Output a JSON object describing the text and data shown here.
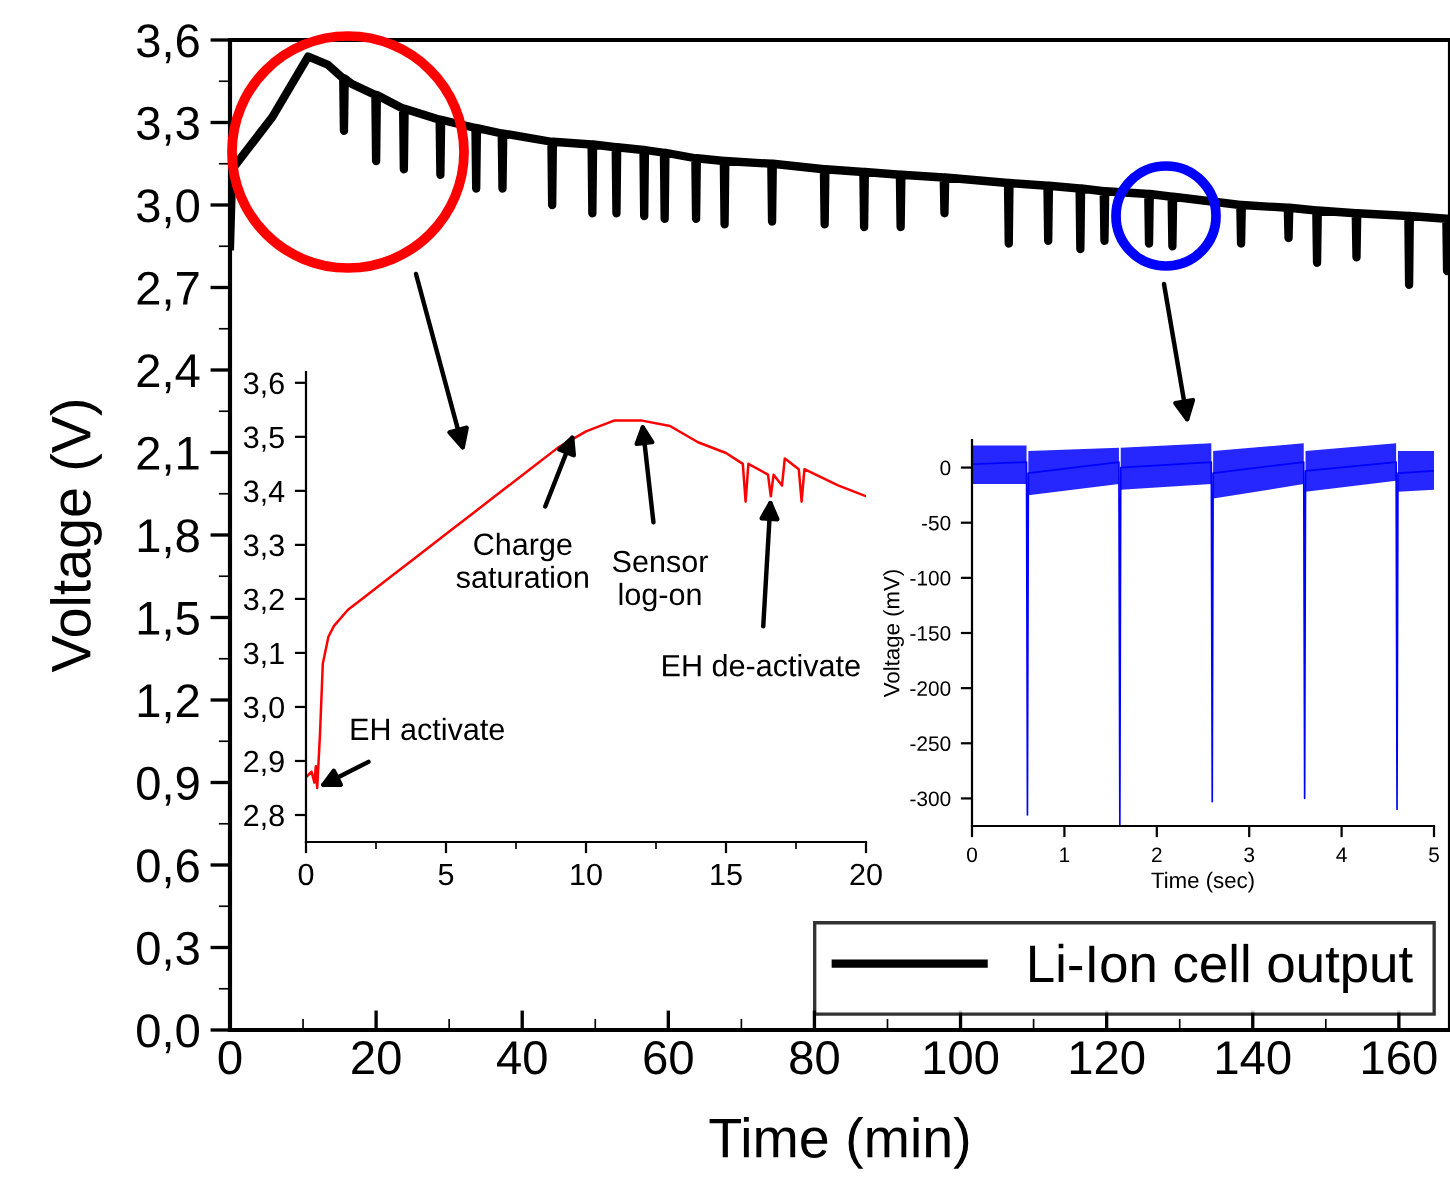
{
  "chart_data": [
    {
      "type": "line",
      "xlabel": "Time (min)",
      "ylabel": "Voltage (V)",
      "legend": "bottom right",
      "xlim": [
        0,
        167
      ],
      "ylim": [
        0,
        3.6
      ],
      "xticks": [
        0,
        {
          "value": 10,
          "label": null
        },
        20,
        {
          "value": 30,
          "label": null
        },
        40,
        {
          "value": 50,
          "label": null
        },
        60,
        {
          "value": 70,
          "label": null
        },
        80,
        {
          "value": 90,
          "label": null
        },
        100,
        {
          "value": 110,
          "label": null
        },
        120,
        {
          "value": 130,
          "label": null
        },
        140,
        {
          "value": 150,
          "label": null
        },
        160
      ],
      "yticks": [
        {
          "value": 0,
          "label": "0,0"
        },
        {
          "value": 0.15,
          "label": null
        },
        {
          "value": 0.3,
          "label": "0,3"
        },
        {
          "value": 0.45,
          "label": null
        },
        {
          "value": 0.6,
          "label": "0,6"
        },
        {
          "value": 0.75,
          "label": null
        },
        {
          "value": 0.9,
          "label": "0,9"
        },
        {
          "value": 1.05,
          "label": null
        },
        {
          "value": 1.2,
          "label": "1,2"
        },
        {
          "value": 1.35,
          "label": null
        },
        {
          "value": 1.5,
          "label": "1,5"
        },
        {
          "value": 1.65,
          "label": null
        },
        {
          "value": 1.8,
          "label": "1,8"
        },
        {
          "value": 1.95,
          "label": null
        },
        {
          "value": 2.1,
          "label": "2,1"
        },
        {
          "value": 2.25,
          "label": null
        },
        {
          "value": 2.4,
          "label": "2,4"
        },
        {
          "value": 2.55,
          "label": null
        },
        {
          "value": 2.7,
          "label": "2,7"
        },
        {
          "value": 2.85,
          "label": null
        },
        {
          "value": 3.0,
          "label": "3,0"
        },
        {
          "value": 3.15,
          "label": null
        },
        {
          "value": 3.3,
          "label": "3,3"
        },
        {
          "value": 3.45,
          "label": null
        },
        {
          "value": 3.6,
          "label": "3,6"
        }
      ],
      "series": [
        {
          "name": "Li-Ion cell output",
          "color": "#000000",
          "x": [
            0,
            0.3,
            5.8,
            10.7,
            13.4,
            15.5,
            15.6,
            15.7,
            16.7,
            19.9,
            20,
            20.1,
            23.7,
            23.8,
            23.9,
            28.7,
            28.8,
            28.9,
            33.6,
            33.7,
            33.8,
            37.2,
            37.3,
            37.4,
            44.0,
            44.1,
            44.2,
            49.5,
            49.6,
            49.7,
            52.8,
            52.9,
            53.0,
            56.6,
            56.7,
            56.8,
            59.4,
            59.5,
            59.6,
            63.7,
            63.8,
            63.9,
            67.6,
            67.7,
            67.8,
            74.1,
            74.2,
            74.3,
            81.3,
            81.4,
            81.5,
            86.7,
            86.8,
            86.9,
            91.7,
            91.8,
            91.9,
            97.7,
            97.8,
            97.9,
            106.5,
            106.6,
            106.7,
            111.9,
            112,
            112.1,
            116.3,
            116.4,
            116.5,
            119.6,
            119.7,
            119.8,
            125.7,
            125.8,
            125.9,
            128.9,
            129,
            129.1,
            138.3,
            138.4,
            138.5,
            144.8,
            144.9,
            145,
            148.7,
            148.8,
            148.9,
            154.1,
            154.2,
            154.3,
            161.3,
            161.4,
            161.5,
            166.5,
            166.6,
            166.7
          ],
          "values": [
            2.85,
            3.13,
            3.32,
            3.54,
            3.51,
            3.46,
            3.27,
            3.46,
            3.44,
            3.4,
            3.16,
            3.4,
            3.35,
            3.13,
            3.35,
            3.31,
            3.11,
            3.31,
            3.28,
            3.06,
            3.28,
            3.26,
            3.06,
            3.26,
            3.23,
            3.0,
            3.23,
            3.22,
            2.97,
            3.22,
            3.21,
            2.97,
            3.21,
            3.2,
            2.96,
            3.2,
            3.19,
            2.95,
            3.19,
            3.17,
            2.95,
            3.17,
            3.16,
            2.93,
            3.16,
            3.15,
            2.94,
            3.15,
            3.13,
            2.93,
            3.13,
            3.12,
            2.92,
            3.12,
            3.11,
            2.92,
            3.11,
            3.1,
            2.97,
            3.1,
            3.08,
            2.86,
            3.08,
            3.07,
            2.87,
            3.07,
            3.06,
            2.84,
            3.06,
            3.05,
            2.87,
            3.05,
            3.04,
            2.86,
            3.04,
            3.03,
            2.85,
            3.03,
            3.0,
            2.86,
            3.0,
            2.99,
            2.88,
            2.99,
            2.98,
            2.79,
            2.98,
            2.97,
            2.81,
            2.97,
            2.96,
            2.71,
            2.96,
            2.95,
            2.76,
            2.95
          ]
        }
      ]
    },
    {
      "type": "line",
      "xlim": [
        0,
        20
      ],
      "ylim": [
        2.75,
        3.62
      ],
      "xticks": [
        0,
        {
          "value": 2.5,
          "label": null
        },
        5,
        {
          "value": 7.5,
          "label": null
        },
        10,
        {
          "value": 12.5,
          "label": null
        },
        15,
        {
          "value": 17.5,
          "label": null
        },
        20
      ],
      "yticks": [
        {
          "value": 2.8,
          "label": "2,8"
        },
        {
          "value": 2.9,
          "label": "2,9"
        },
        {
          "value": 3.0,
          "label": "3,0"
        },
        {
          "value": 3.1,
          "label": "3,1"
        },
        {
          "value": 3.2,
          "label": "3,2"
        },
        {
          "value": 3.3,
          "label": "3,3"
        },
        {
          "value": 3.4,
          "label": "3,4"
        },
        {
          "value": 3.5,
          "label": "3,5"
        },
        {
          "value": 3.6,
          "label": "3,6"
        }
      ],
      "annotations": [
        {
          "text": "EH activate",
          "x": 0.4,
          "y": 2.85
        },
        {
          "text": "Charge\nsaturation",
          "x": 9.6,
          "y": 3.51
        },
        {
          "text": "Sensor\nlog-on",
          "x": 12,
          "y": 3.53
        },
        {
          "text": "EH de-activate",
          "x": 16.6,
          "y": 3.39
        }
      ],
      "series": [
        {
          "color": "#ff0000",
          "x": [
            0,
            0.2,
            0.3,
            0.35,
            0.4,
            0.5,
            0.6,
            0.8,
            1,
            1.5,
            2,
            3,
            4,
            5,
            6,
            7,
            8,
            9,
            10,
            11,
            12,
            13,
            14,
            15,
            15.6,
            15.7,
            15.8,
            16.5,
            16.6,
            16.7,
            17,
            17.1,
            17.6,
            17.7,
            17.8,
            19,
            20
          ],
          "values": [
            2.87,
            2.88,
            2.86,
            2.89,
            2.85,
            2.95,
            3.08,
            3.13,
            3.15,
            3.18,
            3.2,
            3.24,
            3.28,
            3.32,
            3.36,
            3.4,
            3.44,
            3.48,
            3.51,
            3.53,
            3.53,
            3.52,
            3.49,
            3.47,
            3.45,
            3.38,
            3.45,
            3.43,
            3.39,
            3.43,
            3.41,
            3.46,
            3.44,
            3.38,
            3.44,
            3.41,
            3.39
          ]
        }
      ]
    },
    {
      "type": "line",
      "xlabel": "Time (sec)",
      "ylabel": "Voltage (mV)",
      "xlim": [
        0,
        5
      ],
      "ylim": [
        -325,
        25
      ],
      "xticks": [
        0,
        1,
        2,
        3,
        4,
        5
      ],
      "yticks": [
        -300,
        -250,
        -200,
        -150,
        -100,
        -50,
        0
      ],
      "series": [
        {
          "color": "#0000ff",
          "x": [
            0,
            0.59,
            0.6,
            0.61,
            1.59,
            1.6,
            1.61,
            2.59,
            2.6,
            2.61,
            3.59,
            3.6,
            3.61,
            4.59,
            4.6,
            4.61,
            5
          ],
          "values": [
            3,
            5,
            -315,
            -5,
            5,
            -325,
            0,
            5,
            -303,
            -5,
            5,
            -300,
            -3,
            5,
            -310,
            -5,
            -3
          ],
          "lower": [
            -15,
            -15,
            -315,
            -25,
            -15,
            -325,
            -20,
            -15,
            -303,
            -28,
            -15,
            -300,
            -22,
            -12,
            -310,
            -22,
            -20
          ],
          "upper": [
            20,
            20,
            -315,
            15,
            18,
            -325,
            18,
            22,
            -303,
            15,
            22,
            -300,
            15,
            22,
            -310,
            15,
            15
          ]
        }
      ]
    }
  ]
}
